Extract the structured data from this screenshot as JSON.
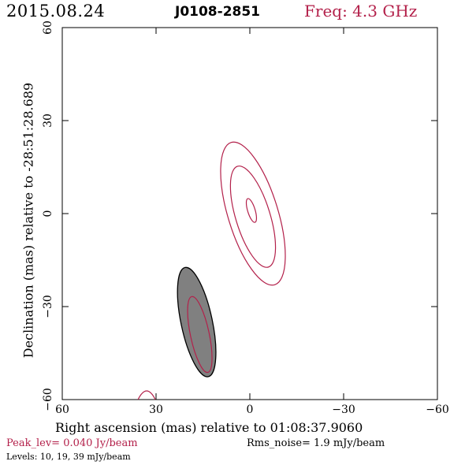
{
  "header": {
    "date": "2015.08.24",
    "source": "J0108-2851",
    "freq": "Freq: 4.3 GHz"
  },
  "footer": {
    "peak": "Peak_lev=  0.040 Jy/beam",
    "rms": "Rms_noise=  1.9 mJy/beam",
    "levels": "Levels:  10,  19,  39 mJy/beam"
  },
  "chart_data": {
    "type": "contour",
    "title": "J0108-2851",
    "xlabel": "Right ascension (mas) relative to 01:08:37.9060",
    "ylabel": "Declination (mas) relative to -28:51:28.689",
    "xlim": [
      60,
      -60
    ],
    "ylim": [
      -60,
      60
    ],
    "xticks": [
      "60",
      "30",
      "0",
      "−30",
      "−60"
    ],
    "yticks": [
      "60",
      "30",
      "0",
      "−30",
      "−60"
    ],
    "levels_mJy": [
      10,
      19,
      39
    ],
    "peak_Jy_per_beam": 0.04,
    "rms_mJy_per_beam": 1.9,
    "contours": [
      {
        "level": 10,
        "center": [
          -1,
          0
        ],
        "semi_major": 24,
        "semi_minor": 8,
        "pa_deg": -17
      },
      {
        "level": 19,
        "center": [
          -1,
          -1
        ],
        "semi_major": 17,
        "semi_minor": 5.5,
        "pa_deg": -17
      },
      {
        "level": 39,
        "center": [
          -0.5,
          1
        ],
        "semi_major": 4,
        "semi_minor": 1.2,
        "pa_deg": -17
      },
      {
        "level": 10,
        "center": [
          16,
          -39
        ],
        "semi_major": 12.5,
        "semi_minor": 3,
        "pa_deg": -12
      }
    ],
    "beam": {
      "center": [
        17,
        -35
      ],
      "semi_major": 18,
      "semi_minor": 5,
      "pa_deg": -12
    },
    "colors": {
      "contour": "#b3204a",
      "beam_fill": "#808080",
      "text_accent": "#b3204a"
    }
  }
}
